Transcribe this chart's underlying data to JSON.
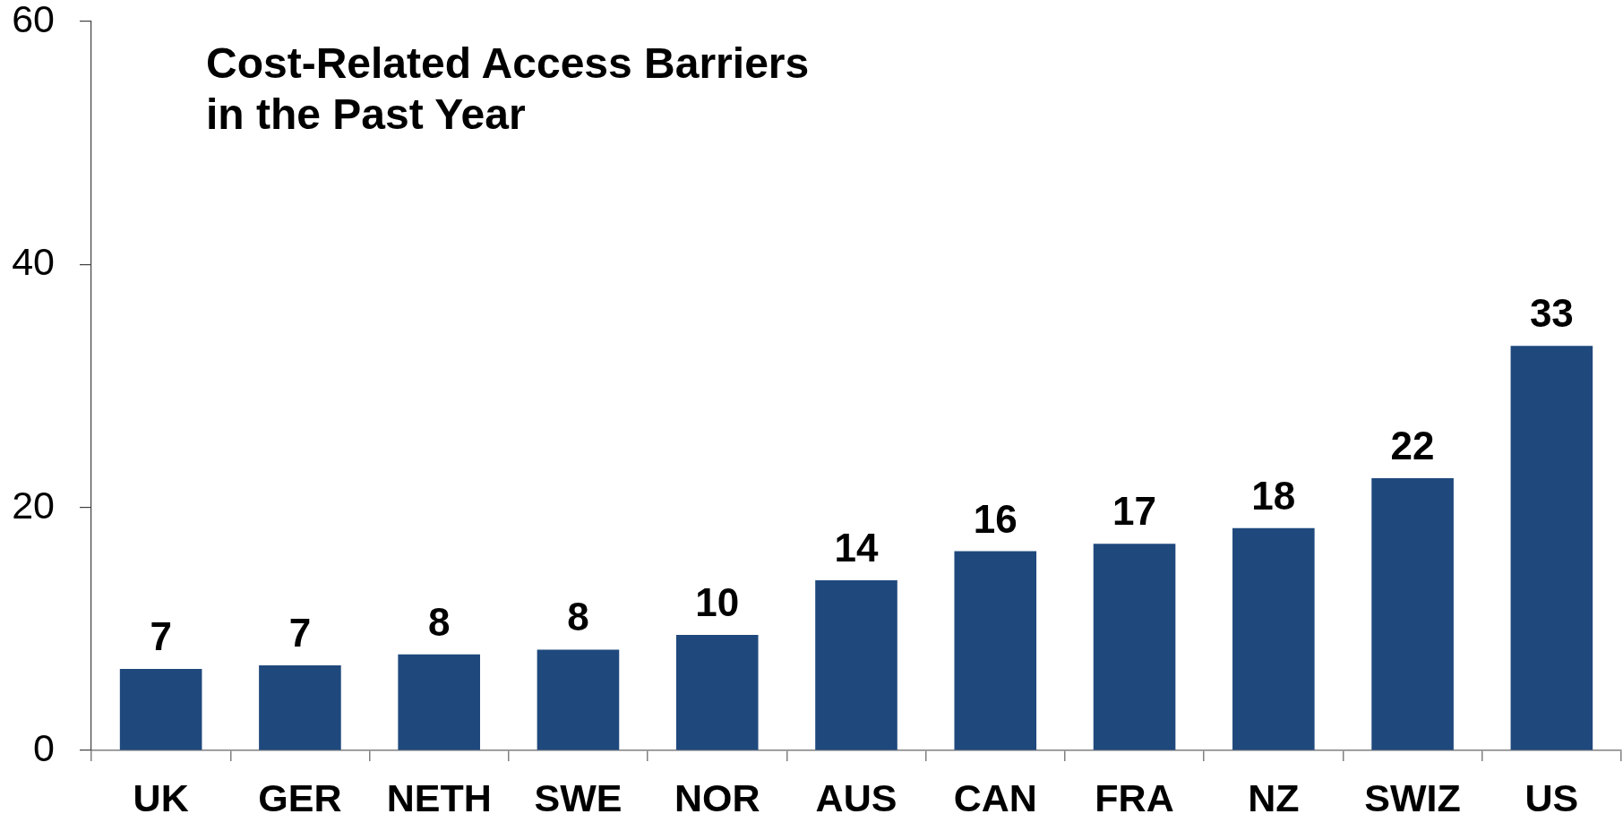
{
  "chart_data": {
    "type": "bar",
    "title": "Cost-Related Access Barriers in the Past Year",
    "categories": [
      "UK",
      "GER",
      "NETH",
      "SWE",
      "NOR",
      "AUS",
      "CAN",
      "FRA",
      "NZ",
      "SWIZ",
      "US"
    ],
    "values": [
      6.7,
      7.0,
      7.9,
      8.3,
      9.5,
      14.0,
      16.4,
      17.0,
      18.3,
      22.4,
      33.3
    ],
    "value_labels": [
      "7",
      "7",
      "8",
      "8",
      "10",
      "14",
      "16",
      "17",
      "18",
      "22",
      "33"
    ],
    "color": "#1f497d",
    "ylim": [
      0,
      60
    ],
    "yticks": [
      0,
      20,
      40,
      60
    ]
  }
}
